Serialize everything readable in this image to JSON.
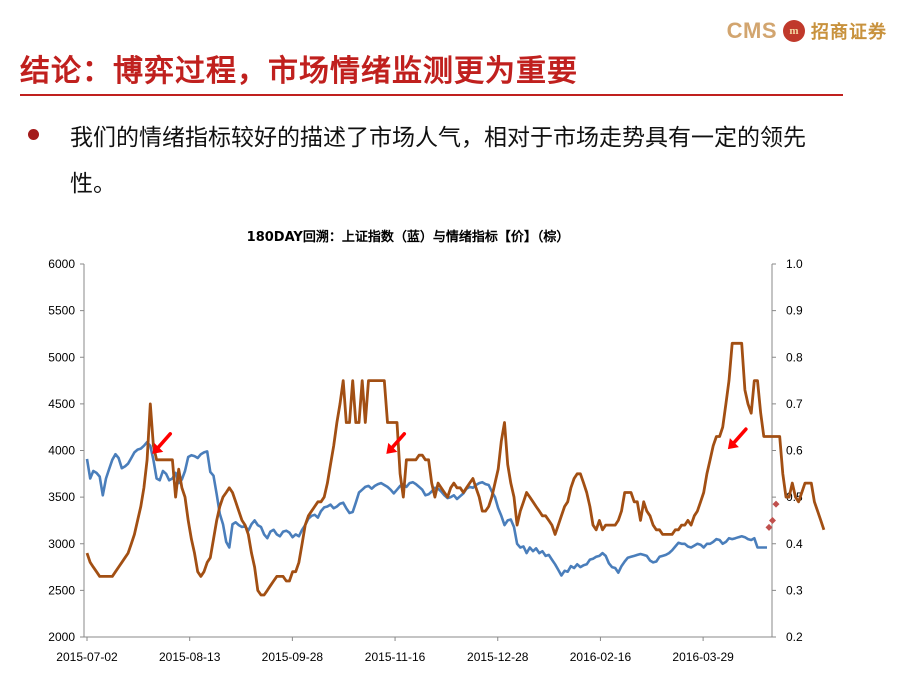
{
  "header": {
    "logo_text": "CMS",
    "logo_mark": "m",
    "logo_cn": "招商证券",
    "brand_color": "#c0201e"
  },
  "slide": {
    "title": "结论：博弈过程，市场情绪监测更为重要",
    "bullet": "我们的情绪指标较好的描述了市场人气，相对于市场走势具有一定的领先性。"
  },
  "chart_data": {
    "type": "line",
    "title": "180DAY回溯：上证指数（蓝）与情绪指标【价】（棕）",
    "x_tick_labels": [
      "2015-07-02",
      "2015-08-13",
      "2015-09-28",
      "2015-11-16",
      "2015-12-28",
      "2016-02-16",
      "2016-03-29"
    ],
    "y_left": {
      "ylim": [
        2000,
        6000
      ],
      "ticks": [
        2000,
        2500,
        3000,
        3500,
        4000,
        4500,
        5000,
        5500,
        6000
      ]
    },
    "y_right": {
      "ylim": [
        0.2,
        1.0
      ],
      "ticks": [
        0.2,
        0.3,
        0.4,
        0.5,
        0.6,
        0.7,
        0.8,
        0.9,
        1.0
      ]
    },
    "grid": false,
    "series": [
      {
        "axis": "left",
        "color": "#4a7ebb",
        "values": [
          3910,
          3700,
          3780,
          3760,
          3720,
          3520,
          3700,
          3800,
          3900,
          3960,
          3920,
          3810,
          3830,
          3860,
          3920,
          3980,
          4010,
          4020,
          4050,
          4090,
          4050,
          3900,
          3700,
          3680,
          3780,
          3750,
          3680,
          3700,
          3760,
          3650,
          3690,
          3780,
          3930,
          3950,
          3940,
          3920,
          3960,
          3980,
          3990,
          3770,
          3730,
          3530,
          3320,
          3210,
          3020,
          2960,
          3210,
          3230,
          3200,
          3180,
          3190,
          3140,
          3210,
          3250,
          3200,
          3180,
          3100,
          3060,
          3130,
          3150,
          3100,
          3080,
          3130,
          3140,
          3120,
          3070,
          3100,
          3080,
          3150,
          3200,
          3270,
          3300,
          3310,
          3280,
          3350,
          3390,
          3400,
          3420,
          3380,
          3400,
          3430,
          3440,
          3380,
          3330,
          3340,
          3440,
          3550,
          3580,
          3610,
          3620,
          3590,
          3620,
          3640,
          3650,
          3630,
          3610,
          3580,
          3540,
          3580,
          3620,
          3640,
          3610,
          3650,
          3660,
          3640,
          3610,
          3580,
          3520,
          3530,
          3560,
          3600,
          3590,
          3560,
          3520,
          3490,
          3500,
          3520,
          3480,
          3510,
          3540,
          3590,
          3610,
          3600,
          3630,
          3650,
          3660,
          3640,
          3630,
          3560,
          3500,
          3380,
          3300,
          3200,
          3250,
          3260,
          3180,
          3000,
          2960,
          2970,
          2900,
          2960,
          2920,
          2950,
          2900,
          2920,
          2870,
          2880,
          2830,
          2780,
          2720,
          2660,
          2710,
          2700,
          2760,
          2740,
          2780,
          2750,
          2770,
          2780,
          2830,
          2840,
          2860,
          2870,
          2900,
          2870,
          2790,
          2750,
          2740,
          2690,
          2760,
          2810,
          2850,
          2860,
          2870,
          2880,
          2890,
          2880,
          2870,
          2820,
          2800,
          2810,
          2860,
          2870,
          2880,
          2900,
          2930,
          2970,
          3010,
          3000,
          3000,
          2970,
          2960,
          2980,
          3000,
          2990,
          2960,
          3000,
          3000,
          3020,
          3050,
          3040,
          3000,
          3020,
          3060,
          3050,
          3060,
          3070,
          3080,
          3070,
          3050,
          3040,
          3060,
          2960,
          2960,
          2960,
          2960
        ]
      },
      {
        "axis": "right",
        "color": "#a24f13",
        "values": [
          0.38,
          0.36,
          0.35,
          0.34,
          0.33,
          0.33,
          0.33,
          0.33,
          0.33,
          0.34,
          0.35,
          0.36,
          0.37,
          0.38,
          0.4,
          0.42,
          0.45,
          0.48,
          0.52,
          0.58,
          0.7,
          0.61,
          0.58,
          0.58,
          0.58,
          0.58,
          0.58,
          0.58,
          0.5,
          0.56,
          0.52,
          0.5,
          0.45,
          0.41,
          0.38,
          0.34,
          0.33,
          0.34,
          0.36,
          0.37,
          0.41,
          0.45,
          0.48,
          0.5,
          0.51,
          0.52,
          0.51,
          0.49,
          0.47,
          0.45,
          0.44,
          0.42,
          0.38,
          0.35,
          0.3,
          0.29,
          0.29,
          0.3,
          0.31,
          0.32,
          0.33,
          0.33,
          0.33,
          0.32,
          0.32,
          0.34,
          0.34,
          0.36,
          0.4,
          0.44,
          0.46,
          0.47,
          0.48,
          0.49,
          0.49,
          0.5,
          0.53,
          0.57,
          0.61,
          0.66,
          0.7,
          0.75,
          0.66,
          0.66,
          0.75,
          0.66,
          0.66,
          0.75,
          0.66,
          0.75,
          0.75,
          0.75,
          0.75,
          0.75,
          0.75,
          0.66,
          0.66,
          0.66,
          0.66,
          0.55,
          0.5,
          0.58,
          0.58,
          0.58,
          0.58,
          0.59,
          0.59,
          0.58,
          0.58,
          0.53,
          0.5,
          0.53,
          0.52,
          0.51,
          0.5,
          0.52,
          0.53,
          0.52,
          0.52,
          0.51,
          0.52,
          0.53,
          0.54,
          0.52,
          0.5,
          0.47,
          0.47,
          0.48,
          0.5,
          0.53,
          0.56,
          0.62,
          0.66,
          0.57,
          0.53,
          0.5,
          0.44,
          0.47,
          0.49,
          0.51,
          0.5,
          0.49,
          0.48,
          0.47,
          0.46,
          0.46,
          0.45,
          0.44,
          0.42,
          0.44,
          0.46,
          0.48,
          0.49,
          0.52,
          0.54,
          0.55,
          0.55,
          0.53,
          0.51,
          0.48,
          0.44,
          0.43,
          0.45,
          0.43,
          0.44,
          0.44,
          0.44,
          0.44,
          0.45,
          0.47,
          0.51,
          0.51,
          0.51,
          0.49,
          0.49,
          0.45,
          0.49,
          0.47,
          0.46,
          0.44,
          0.43,
          0.43,
          0.42,
          0.42,
          0.42,
          0.42,
          0.43,
          0.43,
          0.44,
          0.44,
          0.45,
          0.44,
          0.46,
          0.47,
          0.49,
          0.51,
          0.55,
          0.58,
          0.61,
          0.63,
          0.63,
          0.65,
          0.7,
          0.75,
          0.83,
          0.83,
          0.83,
          0.83,
          0.73,
          0.7,
          0.68,
          0.75,
          0.75,
          0.68,
          0.63,
          0.63,
          0.63,
          0.63,
          0.63,
          0.63,
          0.55,
          0.5,
          0.5,
          0.53,
          0.5,
          0.49,
          0.51,
          0.53,
          0.53,
          0.53,
          0.49,
          0.47,
          0.45,
          0.43
        ]
      },
      {
        "axis": "right",
        "color": "#c0504d",
        "marker": "diamond",
        "values": [
          0.435,
          0.45,
          0.485
        ]
      }
    ],
    "arrows": [
      {
        "x_index": 20,
        "y_right": 0.58,
        "color": "#ff0000"
      },
      {
        "x_index": 94,
        "y_right": 0.58,
        "color": "#ff0000"
      },
      {
        "x_index": 202,
        "y_right": 0.59,
        "color": "#ff0000"
      }
    ]
  }
}
